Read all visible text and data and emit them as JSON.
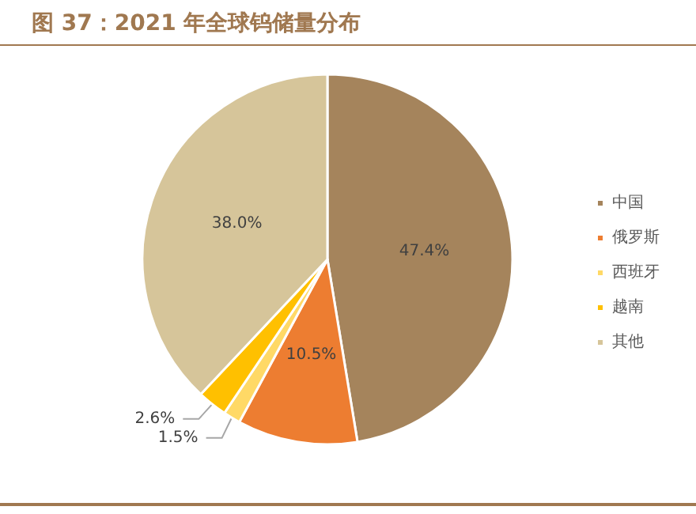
{
  "chart_data": {
    "type": "pie",
    "title": "图 37：2021 年全球钨储量分布",
    "categories": [
      "中国",
      "俄罗斯",
      "西班牙",
      "越南",
      "其他"
    ],
    "values": [
      47.4,
      10.5,
      1.5,
      2.6,
      38.0
    ],
    "colors": [
      "#a5845c",
      "#ed7d31",
      "#ffd966",
      "#ffc000",
      "#d6c59a"
    ],
    "value_labels": [
      "47.4%",
      "10.5%",
      "1.5%",
      "2.6%",
      "38.0%"
    ],
    "legend": "right"
  }
}
